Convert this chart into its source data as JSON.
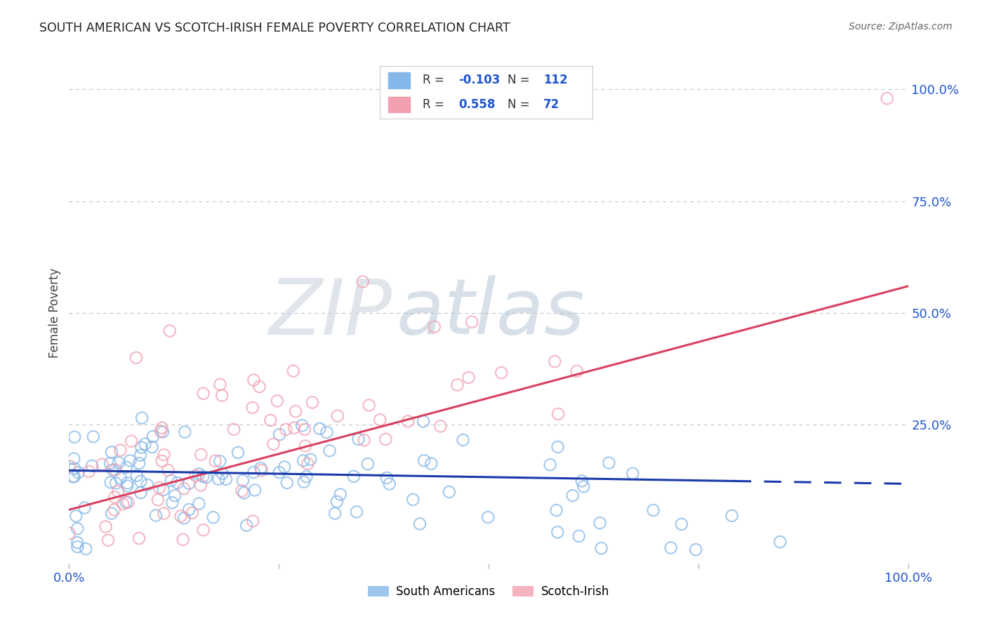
{
  "title": "SOUTH AMERICAN VS SCOTCH-IRISH FEMALE POVERTY CORRELATION CHART",
  "source": "Source: ZipAtlas.com",
  "ylabel": "Female Poverty",
  "south_american_color": "#85b8e8",
  "scotch_irish_color": "#f2a0b0",
  "blue_line_color": "#1a3aaa",
  "pink_line_color": "#d94060",
  "background_color": "#ffffff",
  "grid_color": "#bbbbbb",
  "title_color": "#222222",
  "source_color": "#666666",
  "axis_tick_color": "#2255cc",
  "watermark_zip_color": "#c5cfe0",
  "watermark_atlas_color": "#a0b8d0",
  "R_sa": -0.103,
  "N_sa": 112,
  "R_si": 0.558,
  "N_si": 72,
  "xlim": [
    0.0,
    1.0
  ],
  "ylim": [
    -0.06,
    1.06
  ]
}
